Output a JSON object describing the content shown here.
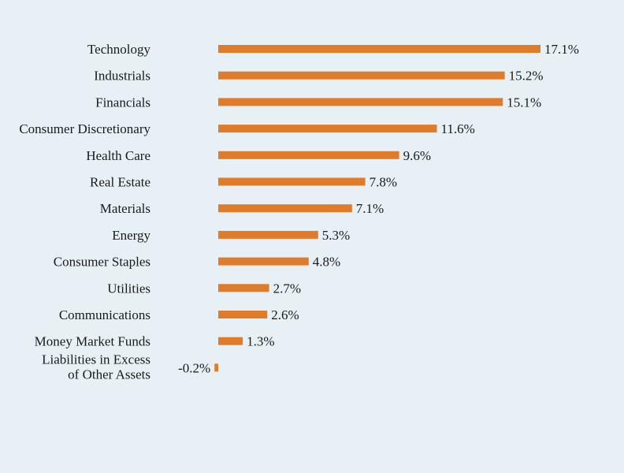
{
  "chart_data": {
    "type": "bar",
    "orientation": "horizontal",
    "categories": [
      "Technology",
      "Industrials",
      "Financials",
      "Consumer Discretionary",
      "Health Care",
      "Real Estate",
      "Materials",
      "Energy",
      "Consumer Staples",
      "Utilities",
      "Communications",
      "Money Market Funds",
      "Liabilities in Excess of Other Assets"
    ],
    "values": [
      17.1,
      15.2,
      15.1,
      11.6,
      9.6,
      7.8,
      7.1,
      5.3,
      4.8,
      2.7,
      2.6,
      1.3,
      -0.2
    ],
    "value_labels": [
      "17.1%",
      "15.2%",
      "15.1%",
      "11.6%",
      "9.6%",
      "7.8%",
      "7.1%",
      "5.3%",
      "4.8%",
      "2.7%",
      "2.6%",
      "1.3%",
      "-0.2%"
    ],
    "bar_color": "#e07b2a",
    "grid": false,
    "legend": "none"
  }
}
